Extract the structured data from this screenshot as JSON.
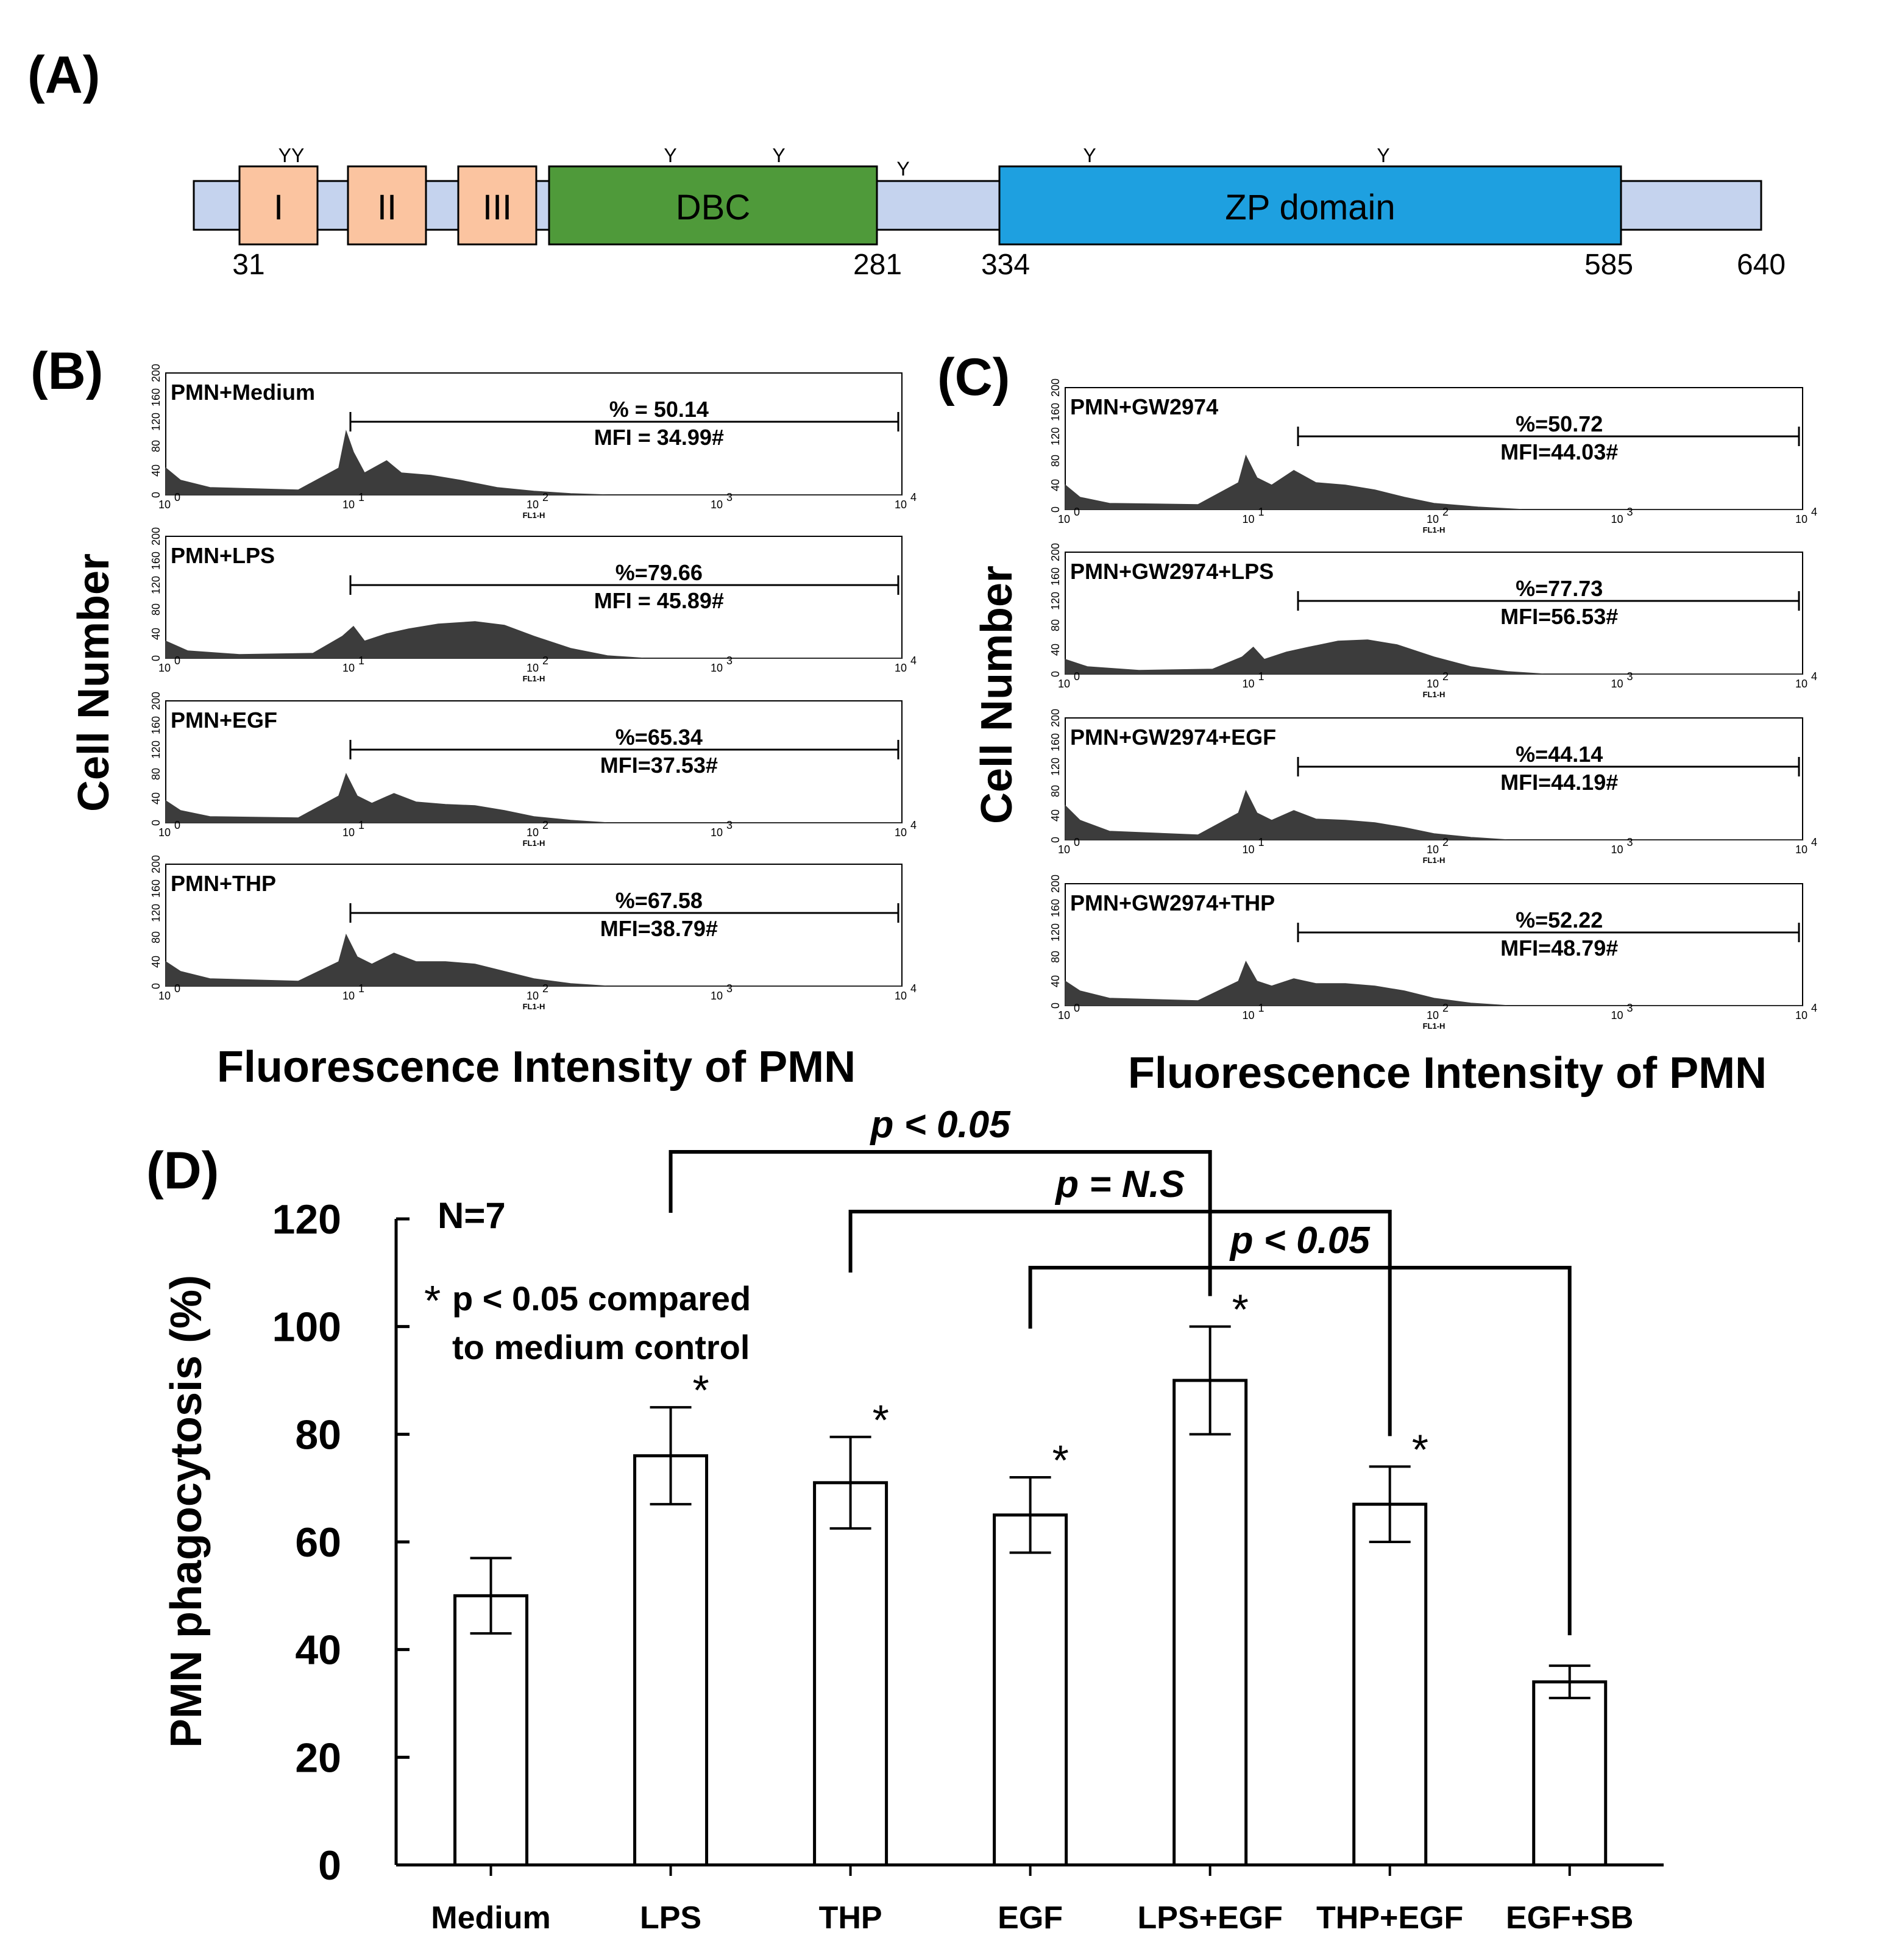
{
  "panels": {
    "A": "(A)",
    "B": "(B)",
    "C": "(C)",
    "D": "(D)"
  },
  "protein_diagram": {
    "domains": [
      {
        "label": "I",
        "color": "#fbc4a0"
      },
      {
        "label": "II",
        "color": "#fbc4a0"
      },
      {
        "label": "III",
        "color": "#fbc4a0"
      },
      {
        "label": "DBC",
        "color": "#4f9a3a"
      },
      {
        "label": "ZP domain",
        "color": "#1ea0e0"
      }
    ],
    "backbone_color": "#c5d3ee",
    "positions": [
      "31",
      "281",
      "334",
      "585",
      "640"
    ],
    "glyco_marker": "Y",
    "glyco_marker_groups": [
      "YY",
      "Y",
      "Y",
      "Y",
      "Y",
      "Y"
    ]
  },
  "histograms": {
    "y_axis_label": "Cell Number",
    "x_axis_label": "Fluorescence Intensity of PMN",
    "axis_title": "FL1-H",
    "y_ticks": [
      "0",
      "40",
      "80",
      "120",
      "160",
      "200"
    ],
    "x_ticks": [
      {
        "base": "10",
        "exp": "0"
      },
      {
        "base": "10",
        "exp": "1"
      },
      {
        "base": "10",
        "exp": "2"
      },
      {
        "base": "10",
        "exp": "3"
      },
      {
        "base": "10",
        "exp": "4"
      }
    ],
    "fill_color": "#3c3c3c",
    "B": [
      {
        "label": "PMN+Medium",
        "pct": "% = 50.14",
        "mfi": "MFI = 34.99#"
      },
      {
        "label": "PMN+LPS",
        "pct": "%=79.66",
        "mfi": "MFI = 45.89#"
      },
      {
        "label": "PMN+EGF",
        "pct": "%=65.34",
        "mfi": "MFI=37.53#"
      },
      {
        "label": "PMN+THP",
        "pct": "%=67.58",
        "mfi": "MFI=38.79#"
      }
    ],
    "C": [
      {
        "label": "PMN+GW2974",
        "pct": "%=50.72",
        "mfi": "MFI=44.03#"
      },
      {
        "label": "PMN+GW2974+LPS",
        "pct": "%=77.73",
        "mfi": "MFI=56.53#"
      },
      {
        "label": "PMN+GW2974+EGF",
        "pct": "%=44.14",
        "mfi": "MFI=44.19#"
      },
      {
        "label": "PMN+GW2974+THP",
        "pct": "%=52.22",
        "mfi": "MFI=48.79#"
      }
    ]
  },
  "chart_data": {
    "type": "bar",
    "title": "",
    "xlabel": "",
    "ylabel": "PMN phagocytosis (%)",
    "ylim": [
      0,
      120
    ],
    "yticks": [
      0,
      20,
      40,
      60,
      80,
      100,
      120
    ],
    "categories": [
      "Medium",
      "LPS",
      "THP",
      "EGF",
      "LPS+EGF",
      "THP+EGF",
      "EGF+SB"
    ],
    "values": [
      50,
      76,
      71,
      65,
      90,
      67,
      34
    ],
    "errors": [
      7,
      9,
      8.5,
      7,
      10,
      7,
      3
    ],
    "significant": [
      false,
      true,
      true,
      true,
      true,
      true,
      false
    ],
    "star_symbol": "*",
    "annotation_n": "N=7",
    "note_star": "*",
    "note_line1": "p < 0.05 compared",
    "note_line2": "to medium control",
    "comparisons": [
      {
        "from": "LPS",
        "to": "LPS+EGF",
        "label": "p < 0.05"
      },
      {
        "from": "THP",
        "to": "THP+EGF",
        "label": "p = N.S"
      },
      {
        "from": "EGF",
        "to": "EGF+SB",
        "label": "p < 0.05"
      }
    ],
    "bar_color": "#ffffff",
    "line_color": "#000000"
  }
}
